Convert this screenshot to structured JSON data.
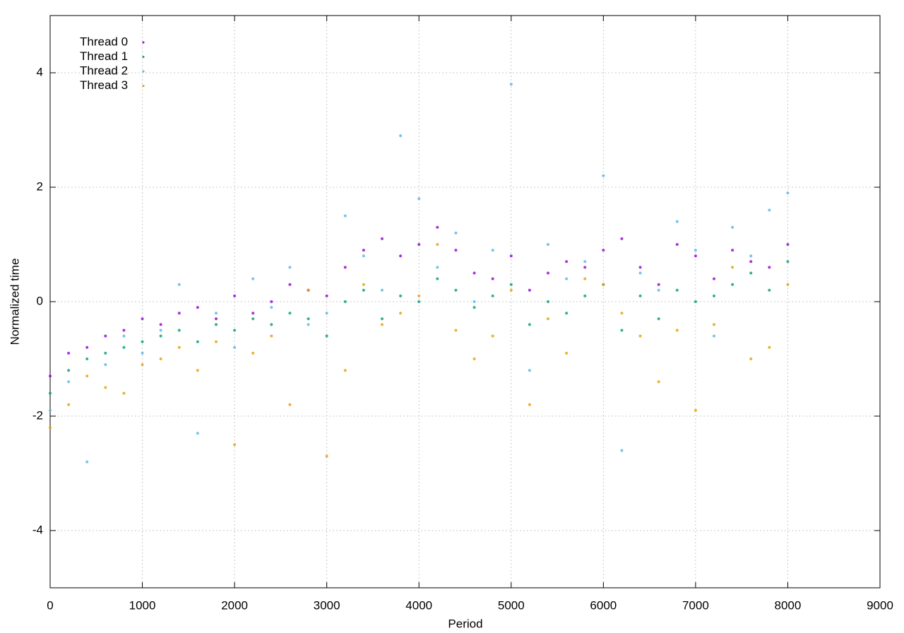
{
  "chart_data": {
    "type": "scatter",
    "xlabel": "Period",
    "ylabel": "Normalized time",
    "xlim": [
      0,
      9000
    ],
    "ylim": [
      -5,
      5
    ],
    "xticks": [
      0,
      1000,
      2000,
      3000,
      4000,
      5000,
      6000,
      7000,
      8000,
      9000
    ],
    "yticks": [
      -4,
      -2,
      0,
      2,
      4
    ],
    "grid": true,
    "legend": "top-left",
    "x": [
      0,
      200,
      400,
      600,
      800,
      1000,
      1200,
      1400,
      1600,
      1800,
      2000,
      2200,
      2400,
      2600,
      2800,
      3000,
      3200,
      3400,
      3600,
      3800,
      4000,
      4200,
      4400,
      4600,
      4800,
      5000,
      5200,
      5400,
      5600,
      5800,
      6000,
      6200,
      6400,
      6600,
      6800,
      7000,
      7200,
      7400,
      7600,
      7800,
      8000
    ],
    "series": [
      {
        "name": "Thread 0",
        "color": "#9400d3",
        "values": [
          -1.3,
          -0.9,
          -0.8,
          -0.6,
          -0.5,
          -0.3,
          -0.4,
          -0.2,
          -0.1,
          -0.3,
          0.1,
          -0.2,
          0.0,
          0.3,
          0.2,
          0.1,
          0.6,
          0.9,
          1.1,
          0.8,
          1.0,
          1.3,
          0.9,
          0.5,
          0.4,
          0.8,
          0.2,
          0.5,
          0.7,
          0.6,
          0.9,
          1.1,
          0.6,
          0.3,
          1.0,
          0.8,
          0.4,
          0.9,
          0.7,
          0.6,
          1.0
        ]
      },
      {
        "name": "Thread 1",
        "color": "#009e73",
        "values": [
          -1.6,
          -1.2,
          -1.0,
          -0.9,
          -0.8,
          -0.7,
          -0.6,
          -0.5,
          -0.7,
          -0.4,
          -0.5,
          -0.3,
          -0.4,
          -0.2,
          -0.3,
          -0.6,
          0.0,
          0.2,
          -0.3,
          0.1,
          0.0,
          0.4,
          0.2,
          -0.1,
          0.1,
          0.3,
          -0.4,
          0.0,
          -0.2,
          0.1,
          0.3,
          -0.5,
          0.1,
          -0.3,
          0.2,
          0.0,
          0.1,
          0.3,
          0.5,
          0.2,
          0.7
        ]
      },
      {
        "name": "Thread 2",
        "color": "#56b4e9",
        "values": [
          -1.9,
          -1.4,
          -2.8,
          -1.1,
          -0.6,
          -0.9,
          -0.5,
          0.3,
          -2.3,
          -0.2,
          -0.8,
          0.4,
          -0.1,
          0.6,
          -0.4,
          -0.2,
          1.5,
          0.8,
          0.2,
          2.9,
          1.8,
          0.6,
          1.2,
          0.0,
          0.9,
          3.8,
          -1.2,
          1.0,
          0.4,
          0.7,
          2.2,
          -2.6,
          0.5,
          0.2,
          1.4,
          0.9,
          -0.6,
          1.3,
          0.8,
          1.6,
          1.9
        ]
      },
      {
        "name": "Thread 3",
        "color": "#e69f00",
        "values": [
          -2.2,
          -1.8,
          -1.3,
          -1.5,
          -1.6,
          -1.1,
          -1.0,
          -0.8,
          -1.2,
          -0.7,
          -2.5,
          -0.9,
          -0.6,
          -1.8,
          0.2,
          -2.7,
          -1.2,
          0.3,
          -0.4,
          -0.2,
          0.1,
          1.0,
          -0.5,
          -1.0,
          -0.6,
          0.2,
          -1.8,
          -0.3,
          -0.9,
          0.4,
          0.3,
          -0.2,
          -0.6,
          -1.4,
          -0.5,
          -1.9,
          -0.4,
          0.6,
          -1.0,
          -0.8,
          0.3
        ]
      }
    ]
  }
}
